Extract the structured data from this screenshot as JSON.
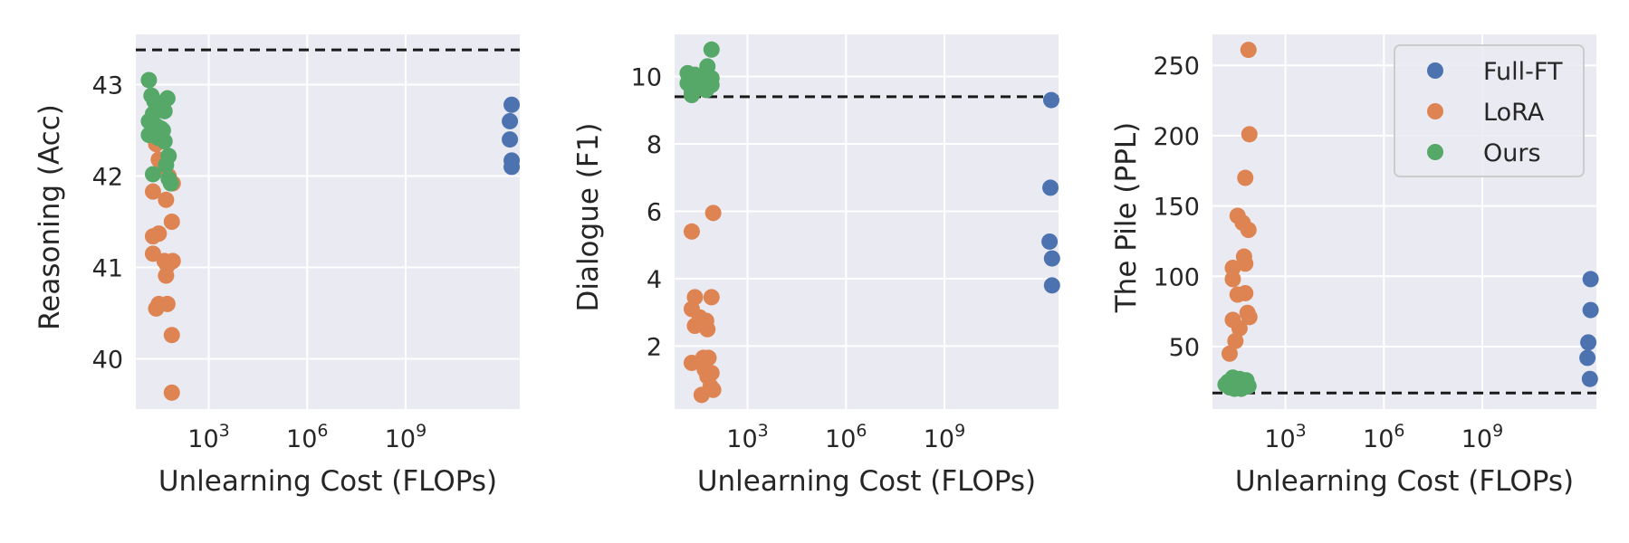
{
  "colors": {
    "Full-FT": "#4c72b0",
    "LoRA": "#dd8452",
    "Ours": "#55a868",
    "background": "#eaeaf2",
    "grid": "#ffffff",
    "reference_line": "#1a1a1a"
  },
  "legend": {
    "placement": "upper-right of third panel",
    "entries": [
      "Full-FT",
      "LoRA",
      "Ours"
    ]
  },
  "chart_data": [
    {
      "type": "scatter",
      "xlabel": "Unlearning Cost (FLOPs)",
      "ylabel": "Reasoning (Acc)",
      "x_scale": "log",
      "xlim": [
        6,
        3000000000000.0
      ],
      "ylim": [
        39.45,
        43.55
      ],
      "x_ticks": [
        {
          "value": 1000,
          "base": "10",
          "exp": "3"
        },
        {
          "value": 1000000,
          "base": "10",
          "exp": "6"
        },
        {
          "value": 1000000000,
          "base": "10",
          "exp": "9"
        }
      ],
      "y_ticks": [
        {
          "value": 40,
          "label": "40"
        },
        {
          "value": 41,
          "label": "41"
        },
        {
          "value": 42,
          "label": "42"
        },
        {
          "value": 43,
          "label": "43"
        }
      ],
      "grid": true,
      "reference_line": 43.38,
      "series": [
        {
          "name": "Full-FT",
          "points": [
            [
              1700000000000.0,
              42.78
            ],
            [
              1500000000000.0,
              42.6
            ],
            [
              1500000000000.0,
              42.4
            ],
            [
              1700000000000.0,
              42.17
            ],
            [
              1700000000000.0,
              42.1
            ]
          ]
        },
        {
          "name": "LoRA",
          "points": [
            [
              25,
              42.35
            ],
            [
              30,
              42.18
            ],
            [
              45,
              42.07
            ],
            [
              60,
              42.0
            ],
            [
              80,
              41.92
            ],
            [
              20,
              41.83
            ],
            [
              50,
              41.74
            ],
            [
              30,
              41.37
            ],
            [
              20,
              41.34
            ],
            [
              75,
              41.5
            ],
            [
              20,
              41.15
            ],
            [
              45,
              41.07
            ],
            [
              80,
              41.07
            ],
            [
              55,
              41.02
            ],
            [
              50,
              40.91
            ],
            [
              30,
              40.6
            ],
            [
              55,
              40.6
            ],
            [
              25,
              40.55
            ],
            [
              75,
              40.26
            ],
            [
              75,
              39.63
            ]
          ]
        },
        {
          "name": "Ours",
          "points": [
            [
              15,
              43.05
            ],
            [
              18,
              42.88
            ],
            [
              22,
              42.82
            ],
            [
              55,
              42.85
            ],
            [
              20,
              42.68
            ],
            [
              45,
              42.71
            ],
            [
              15,
              42.6
            ],
            [
              25,
              42.55
            ],
            [
              35,
              42.52
            ],
            [
              40,
              42.5
            ],
            [
              15,
              42.45
            ],
            [
              28,
              42.42
            ],
            [
              45,
              42.38
            ],
            [
              60,
              42.22
            ],
            [
              50,
              42.12
            ],
            [
              20,
              42.02
            ],
            [
              60,
              41.97
            ],
            [
              70,
              41.92
            ]
          ]
        }
      ]
    },
    {
      "type": "scatter",
      "xlabel": "Unlearning Cost (FLOPs)",
      "ylabel": "Dialogue (F1)",
      "x_scale": "log",
      "xlim": [
        6,
        3000000000000.0
      ],
      "ylim": [
        0.13,
        11.25
      ],
      "x_ticks": [
        {
          "value": 1000,
          "base": "10",
          "exp": "3"
        },
        {
          "value": 1000000,
          "base": "10",
          "exp": "6"
        },
        {
          "value": 1000000000,
          "base": "10",
          "exp": "9"
        }
      ],
      "y_ticks": [
        {
          "value": 2,
          "label": "2"
        },
        {
          "value": 4,
          "label": "4"
        },
        {
          "value": 6,
          "label": "6"
        },
        {
          "value": 8,
          "label": "8"
        },
        {
          "value": 10,
          "label": "10"
        }
      ],
      "grid": true,
      "reference_line": 9.4,
      "series": [
        {
          "name": "Full-FT",
          "points": [
            [
              1800000000000.0,
              9.3
            ],
            [
              1700000000000.0,
              6.7
            ],
            [
              1600000000000.0,
              5.1
            ],
            [
              1900000000000.0,
              4.6
            ],
            [
              1900000000000.0,
              3.8
            ]
          ]
        },
        {
          "name": "LoRA",
          "points": [
            [
              20,
              5.4
            ],
            [
              90,
              5.95
            ],
            [
              25,
              3.45
            ],
            [
              80,
              3.45
            ],
            [
              20,
              3.1
            ],
            [
              35,
              2.85
            ],
            [
              55,
              2.75
            ],
            [
              25,
              2.6
            ],
            [
              60,
              2.5
            ],
            [
              20,
              1.5
            ],
            [
              45,
              1.65
            ],
            [
              65,
              1.65
            ],
            [
              50,
              1.3
            ],
            [
              60,
              1.1
            ],
            [
              80,
              1.2
            ],
            [
              75,
              0.8
            ],
            [
              40,
              0.55
            ],
            [
              90,
              0.7
            ]
          ]
        },
        {
          "name": "Ours",
          "points": [
            [
              80,
              10.8
            ],
            [
              60,
              10.3
            ],
            [
              15,
              10.1
            ],
            [
              25,
              10.05
            ],
            [
              45,
              10.0
            ],
            [
              65,
              10.0
            ],
            [
              80,
              9.95
            ],
            [
              35,
              9.9
            ],
            [
              15,
              9.8
            ],
            [
              55,
              9.8
            ],
            [
              25,
              9.7
            ],
            [
              80,
              9.75
            ],
            [
              40,
              9.65
            ],
            [
              20,
              9.55
            ],
            [
              55,
              9.6
            ],
            [
              65,
              9.7
            ],
            [
              20,
              9.45
            ]
          ]
        }
      ]
    },
    {
      "type": "scatter",
      "xlabel": "Unlearning Cost (FLOPs)",
      "ylabel": "The Pile (PPL)",
      "x_scale": "log",
      "xlim": [
        6,
        3000000000000.0
      ],
      "ylim": [
        5.6,
        272
      ],
      "x_ticks": [
        {
          "value": 1000,
          "base": "10",
          "exp": "3"
        },
        {
          "value": 1000000,
          "base": "10",
          "exp": "6"
        },
        {
          "value": 1000000000,
          "base": "10",
          "exp": "9"
        }
      ],
      "y_ticks": [
        {
          "value": 50,
          "label": "50"
        },
        {
          "value": 100,
          "label": "100"
        },
        {
          "value": 150,
          "label": "150"
        },
        {
          "value": 200,
          "label": "200"
        },
        {
          "value": 250,
          "label": "250"
        }
      ],
      "grid": true,
      "reference_line": 17,
      "series": [
        {
          "name": "Full-FT",
          "points": [
            [
              2000000000000.0,
              98
            ],
            [
              2000000000000.0,
              76
            ],
            [
              1700000000000.0,
              53
            ],
            [
              1600000000000.0,
              42
            ],
            [
              1900000000000.0,
              27
            ]
          ]
        },
        {
          "name": "LoRA",
          "points": [
            [
              75,
              261
            ],
            [
              80,
              201
            ],
            [
              60,
              170
            ],
            [
              35,
              143
            ],
            [
              50,
              138
            ],
            [
              75,
              133
            ],
            [
              55,
              114
            ],
            [
              25,
              106
            ],
            [
              60,
              109
            ],
            [
              25,
              98
            ],
            [
              35,
              87
            ],
            [
              60,
              88
            ],
            [
              25,
              69
            ],
            [
              70,
              74
            ],
            [
              80,
              71
            ],
            [
              40,
              63
            ],
            [
              30,
              54
            ],
            [
              20,
              45
            ]
          ]
        },
        {
          "name": "Ours",
          "points": [
            [
              15,
              23
            ],
            [
              20,
              21
            ],
            [
              25,
              28
            ],
            [
              30,
              25
            ],
            [
              35,
              22
            ],
            [
              40,
              27
            ],
            [
              45,
              20
            ],
            [
              50,
              24
            ],
            [
              55,
              26
            ],
            [
              60,
              22
            ],
            [
              65,
              26
            ],
            [
              70,
              23
            ],
            [
              18,
              25
            ],
            [
              75,
              22
            ],
            [
              28,
              20
            ],
            [
              42,
              23
            ]
          ]
        }
      ]
    }
  ]
}
